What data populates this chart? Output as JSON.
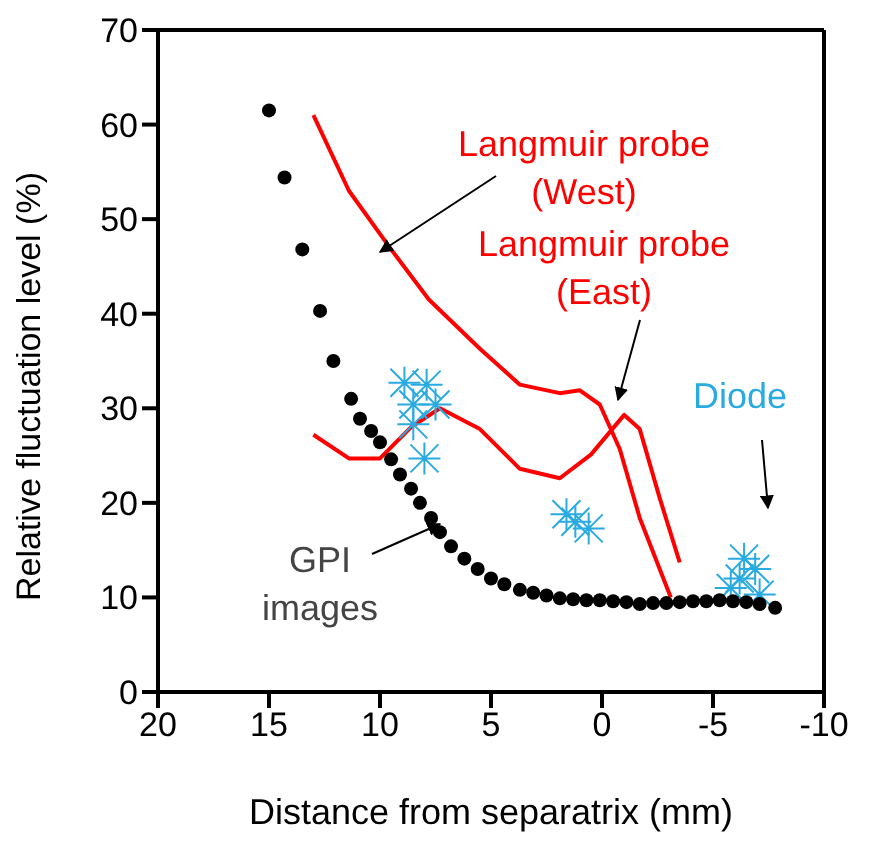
{
  "chart_data": {
    "type": "line",
    "xlabel": "Distance from separatrix (mm)",
    "ylabel": "Relative fluctuation level (%)",
    "xlim": [
      20,
      -10
    ],
    "xticks": [
      20,
      15,
      10,
      5,
      0,
      -5,
      -10
    ],
    "ylim": [
      0,
      70
    ],
    "yticks": [
      0,
      10,
      20,
      30,
      40,
      50,
      60,
      70
    ],
    "grid": false,
    "line_style": "solid",
    "series": [
      {
        "name": "Langmuir probe (West)",
        "marker": "none",
        "color": "#ff0000",
        "x": [
          13,
          11.4,
          9.5,
          7.8,
          5.5,
          3.7,
          1.9,
          1,
          0.1,
          -0.8,
          -1.7,
          -3.1
        ],
        "values": [
          61,
          53,
          46.8,
          41.5,
          36.3,
          32.5,
          31.6,
          31.9,
          30.4,
          25.7,
          18.4,
          10
        ]
      },
      {
        "name": "Langmuir probe (East)",
        "marker": "none",
        "color": "#ff0000",
        "x": [
          13,
          11.4,
          10,
          8.6,
          7.3,
          5.5,
          3.7,
          1.9,
          0.5,
          -1,
          -1.7,
          -2.6,
          -3.5
        ],
        "values": [
          27.2,
          24.7,
          24.7,
          28,
          30,
          27.8,
          23.6,
          22.6,
          25.1,
          29.3,
          27.8,
          20.5,
          13.7
        ]
      },
      {
        "name": "Diode",
        "type": "scatter",
        "marker": "cross",
        "color": "#29abe2",
        "x": [
          8.9,
          7.9,
          8.5,
          7.5,
          8.5,
          8,
          1.2,
          0.6,
          1.6,
          -6.2,
          -6.9,
          -5.8,
          -7.1,
          -6.4
        ],
        "values": [
          32.7,
          32.5,
          30.4,
          30.4,
          28.3,
          24.7,
          18,
          17.3,
          18.8,
          12,
          13,
          11,
          10.3,
          14.1
        ]
      },
      {
        "name": "GPI images",
        "type": "scatter",
        "marker": "circle",
        "color": "#000000",
        "x": [
          15,
          14.3,
          13.5,
          12.7,
          12.1,
          11.3,
          10.9,
          10.4,
          10,
          9.5,
          9.1,
          8.6,
          8.2,
          7.7,
          7.3,
          6.8,
          6.2,
          5.6,
          5,
          4.4,
          3.7,
          3.1,
          2.5,
          1.9,
          1.3,
          0.7,
          0.1,
          -0.5,
          -1.1,
          -1.7,
          -2.3,
          -2.9,
          -3.5,
          -4.1,
          -4.7,
          -5.3,
          -5.9,
          -6.5,
          -7.1,
          -7.8
        ],
        "values": [
          61.5,
          54.4,
          46.8,
          40.3,
          35,
          31,
          28.9,
          27.6,
          26.4,
          24.6,
          23,
          21.5,
          20,
          18.4,
          16.9,
          15.4,
          14.1,
          13,
          12,
          11.4,
          10.8,
          10.5,
          10.2,
          9.9,
          9.8,
          9.7,
          9.7,
          9.6,
          9.5,
          9.3,
          9.4,
          9.4,
          9.5,
          9.6,
          9.6,
          9.7,
          9.6,
          9.5,
          9.3,
          8.9
        ]
      }
    ]
  }
}
